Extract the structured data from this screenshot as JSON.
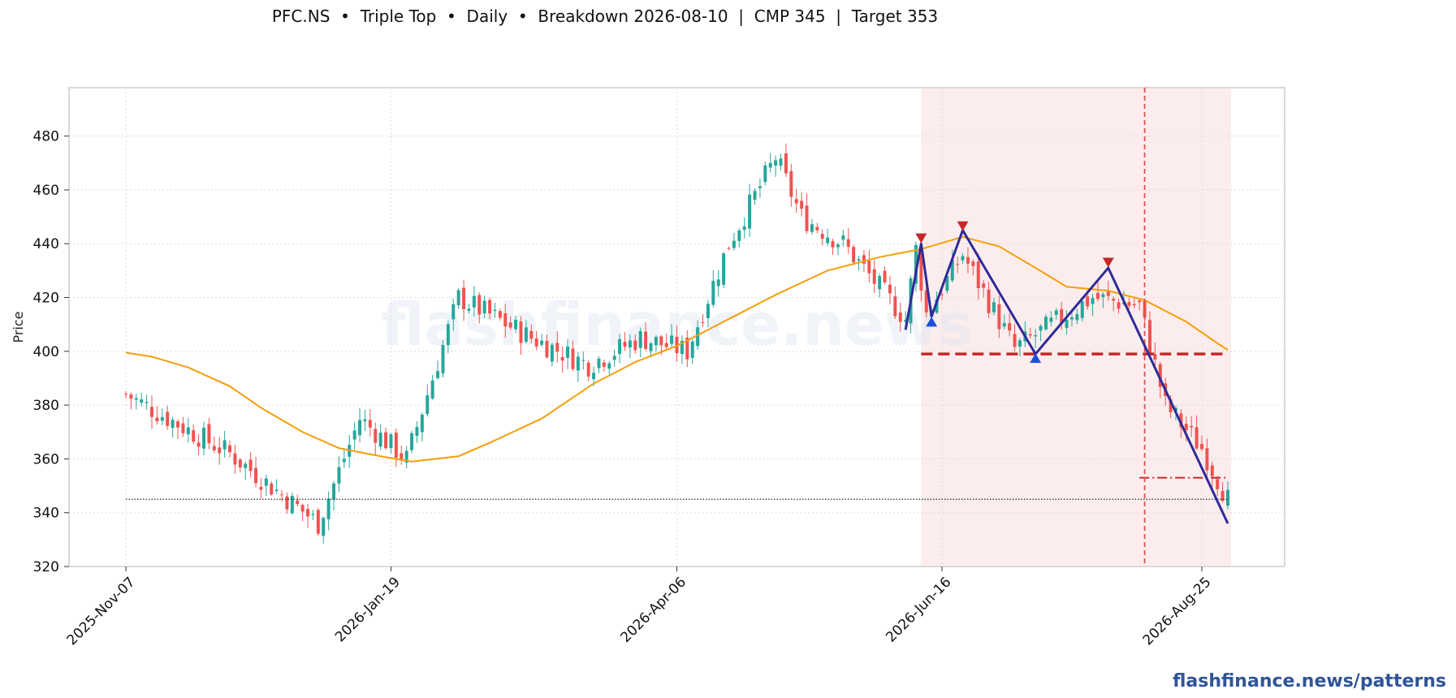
{
  "header": {
    "title": "PFC.NS  •  Triple Top  •  Daily  •  Breakdown 2026-08-10  |  CMP 345  |  Target 353"
  },
  "watermark_text": "flashfinance.news",
  "footer": {
    "brand": "flashfinance.news/patterns"
  },
  "colors": {
    "up": "#26a69a",
    "down": "#ef5350",
    "ma": "#f59e0b",
    "pattern_line": "#2e2a9a",
    "neckline": "#c62828",
    "peak_marker": "#c62828",
    "trough_marker": "#1e4fd8",
    "shade": "#f4cccc",
    "breakdown_line": "#d9534f"
  },
  "chart_data": {
    "type": "candlestick",
    "title": "PFC.NS  •  Triple Top  •  Daily  •  Breakdown 2026-08-10  |  CMP 345  |  Target 353",
    "xlabel": "",
    "ylabel": "Price",
    "ylim": [
      320,
      498
    ],
    "y_ticks": [
      320,
      340,
      360,
      380,
      400,
      420,
      440,
      460,
      480
    ],
    "x_ticks": [
      "2025-Nov-07",
      "2026-Jan-19",
      "2026-Apr-06",
      "2026-Jun-16",
      "2026-Aug-25"
    ],
    "grid": true,
    "segments": [
      {
        "start": "2025-11-07",
        "end": "2025-12-05",
        "from": 384,
        "to": 362
      },
      {
        "start": "2025-12-05",
        "end": "2025-12-30",
        "from": 362,
        "to": 336
      },
      {
        "start": "2025-12-30",
        "end": "2026-01-09",
        "from": 336,
        "to": 375
      },
      {
        "start": "2026-01-09",
        "end": "2026-01-22",
        "from": 375,
        "to": 360
      },
      {
        "start": "2026-01-22",
        "end": "2026-02-05",
        "from": 360,
        "to": 420
      },
      {
        "start": "2026-02-05",
        "end": "2026-02-25",
        "from": 420,
        "to": 405
      },
      {
        "start": "2026-02-25",
        "end": "2026-03-12",
        "from": 405,
        "to": 395
      },
      {
        "start": "2026-03-12",
        "end": "2026-03-26",
        "from": 395,
        "to": 405
      },
      {
        "start": "2026-03-26",
        "end": "2026-04-08",
        "from": 405,
        "to": 400
      },
      {
        "start": "2026-04-08",
        "end": "2026-04-20",
        "from": 400,
        "to": 440
      },
      {
        "start": "2026-04-20",
        "end": "2026-05-01",
        "from": 440,
        "to": 472
      },
      {
        "start": "2026-05-01",
        "end": "2026-05-08",
        "from": 472,
        "to": 450
      },
      {
        "start": "2026-05-08",
        "end": "2026-05-20",
        "from": 450,
        "to": 440
      },
      {
        "start": "2026-05-20",
        "end": "2026-06-05",
        "from": 440,
        "to": 412
      },
      {
        "start": "2026-06-05",
        "end": "2026-06-09",
        "from": 412,
        "to": 438
      },
      {
        "start": "2026-06-09",
        "end": "2026-06-11",
        "from": 438,
        "to": 414
      },
      {
        "start": "2026-06-11",
        "end": "2026-06-22",
        "from": 414,
        "to": 436
      },
      {
        "start": "2026-06-22",
        "end": "2026-07-06",
        "from": 436,
        "to": 401
      },
      {
        "start": "2026-07-06",
        "end": "2026-07-27",
        "from": 401,
        "to": 420
      },
      {
        "start": "2026-07-27",
        "end": "2026-08-09",
        "from": 420,
        "to": 417
      },
      {
        "start": "2026-08-09",
        "end": "2026-08-14",
        "from": 417,
        "to": 380
      },
      {
        "start": "2026-08-14",
        "end": "2026-08-25",
        "from": 380,
        "to": 364
      },
      {
        "start": "2026-08-25",
        "end": "2026-09-01",
        "from": 364,
        "to": 345
      }
    ],
    "ma": [
      {
        "date": "2025-11-07",
        "value": 399.5
      },
      {
        "date": "2025-11-15",
        "value": 398
      },
      {
        "date": "2025-11-25",
        "value": 394
      },
      {
        "date": "2025-12-05",
        "value": 387
      },
      {
        "date": "2025-12-15",
        "value": 379
      },
      {
        "date": "2025-12-25",
        "value": 370
      },
      {
        "date": "2026-01-05",
        "value": 364
      },
      {
        "date": "2026-01-15",
        "value": 361
      },
      {
        "date": "2026-01-25",
        "value": 359
      },
      {
        "date": "2026-02-05",
        "value": 361
      },
      {
        "date": "2026-02-15",
        "value": 366
      },
      {
        "date": "2026-03-01",
        "value": 375
      },
      {
        "date": "2026-03-15",
        "value": 388
      },
      {
        "date": "2026-03-25",
        "value": 396
      },
      {
        "date": "2026-04-06",
        "value": 402
      },
      {
        "date": "2026-04-20",
        "value": 412
      },
      {
        "date": "2026-05-01",
        "value": 421
      },
      {
        "date": "2026-05-15",
        "value": 430
      },
      {
        "date": "2026-05-30",
        "value": 435
      },
      {
        "date": "2026-06-10",
        "value": 438
      },
      {
        "date": "2026-06-22",
        "value": 442.5
      },
      {
        "date": "2026-07-01",
        "value": 439
      },
      {
        "date": "2026-07-10",
        "value": 431
      },
      {
        "date": "2026-07-20",
        "value": 424
      },
      {
        "date": "2026-07-30",
        "value": 422.5
      },
      {
        "date": "2026-08-10",
        "value": 419
      },
      {
        "date": "2026-08-20",
        "value": 411
      },
      {
        "date": "2026-08-30",
        "value": 403
      },
      {
        "date": "2026-09-01",
        "value": 400.5
      }
    ],
    "pattern_line": [
      {
        "date": "2026-06-05",
        "value": 408
      },
      {
        "date": "2026-06-10",
        "value": 440
      },
      {
        "date": "2026-06-12",
        "value": 413
      },
      {
        "date": "2026-06-22",
        "value": 445
      },
      {
        "date": "2026-07-10",
        "value": 399
      },
      {
        "date": "2026-07-30",
        "value": 431
      },
      {
        "date": "2026-09-01",
        "value": 336
      }
    ],
    "peaks": [
      {
        "date": "2026-06-10",
        "value": 442
      },
      {
        "date": "2026-06-22",
        "value": 446.5
      },
      {
        "date": "2026-07-30",
        "value": 433
      }
    ],
    "troughs": [
      {
        "date": "2026-06-12",
        "value": 411
      },
      {
        "date": "2026-07-10",
        "value": 397.5
      }
    ],
    "neckline": {
      "start": "2026-06-10",
      "end": "2026-09-01",
      "value": 399
    },
    "target": {
      "start": "2026-08-09",
      "end": "2026-09-01",
      "value": 353
    },
    "cmp": {
      "start": "2025-11-07",
      "end": "2026-09-01",
      "value": 345
    },
    "pattern_zone": {
      "start": "2026-06-10",
      "end": "2026-09-01"
    },
    "breakdown_date": "2026-08-10"
  }
}
